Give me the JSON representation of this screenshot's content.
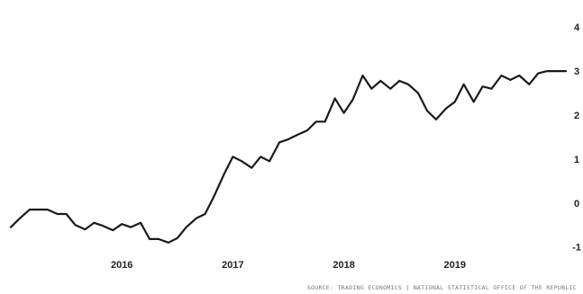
{
  "chart_data": {
    "type": "line",
    "title": "",
    "xlabel": "",
    "ylabel": "",
    "x_tick_labels": [
      "2016",
      "2017",
      "2018",
      "2019"
    ],
    "x_tick_values": [
      2016.0,
      2017.0,
      2018.0,
      2019.0
    ],
    "y_tick_labels": [
      "4",
      "3",
      "2",
      "1",
      "0",
      "-1"
    ],
    "y_tick_values": [
      4,
      3,
      2,
      1,
      0,
      -1
    ],
    "xlim": [
      2015.0,
      2020.0
    ],
    "ylim": [
      -1.15,
      4.25
    ],
    "grid": false,
    "legend": "none",
    "series": [
      {
        "color": "#1a1a1a",
        "x": [
          2015.0,
          2015.08,
          2015.17,
          2015.25,
          2015.33,
          2015.42,
          2015.5,
          2015.58,
          2015.67,
          2015.75,
          2015.83,
          2015.92,
          2016.0,
          2016.08,
          2016.17,
          2016.25,
          2016.33,
          2016.42,
          2016.5,
          2016.58,
          2016.67,
          2016.75,
          2016.83,
          2016.92,
          2017.0,
          2017.08,
          2017.17,
          2017.25,
          2017.33,
          2017.42,
          2017.5,
          2017.58,
          2017.67,
          2017.75,
          2017.83,
          2017.92,
          2018.0,
          2018.08,
          2018.17,
          2018.25,
          2018.33,
          2018.42,
          2018.5,
          2018.58,
          2018.67,
          2018.75,
          2018.83,
          2018.92,
          2019.0,
          2019.08,
          2019.17,
          2019.25,
          2019.33,
          2019.42,
          2019.5,
          2019.58,
          2019.67,
          2019.75,
          2019.83,
          2019.92,
          2020.0
        ],
        "y": [
          -0.55,
          -0.35,
          -0.15,
          -0.15,
          -0.15,
          -0.25,
          -0.25,
          -0.5,
          -0.6,
          -0.45,
          -0.52,
          -0.62,
          -0.48,
          -0.55,
          -0.45,
          -0.82,
          -0.82,
          -0.9,
          -0.8,
          -0.55,
          -0.35,
          -0.25,
          0.15,
          0.65,
          1.05,
          0.95,
          0.8,
          1.05,
          0.95,
          1.38,
          1.45,
          1.55,
          1.65,
          1.85,
          1.85,
          2.38,
          2.05,
          2.35,
          2.9,
          2.6,
          2.78,
          2.6,
          2.78,
          2.7,
          2.5,
          2.1,
          1.9,
          2.15,
          2.3,
          2.7,
          2.3,
          2.65,
          2.6,
          2.9,
          2.8,
          2.9,
          2.7,
          2.95,
          3.0,
          3.0,
          3.0
        ]
      }
    ],
    "source_note": "SOURCE: TRADING ECONOMICS | NATIONAL STATISTICAL OFFICE OF THE REPUBLIC"
  }
}
